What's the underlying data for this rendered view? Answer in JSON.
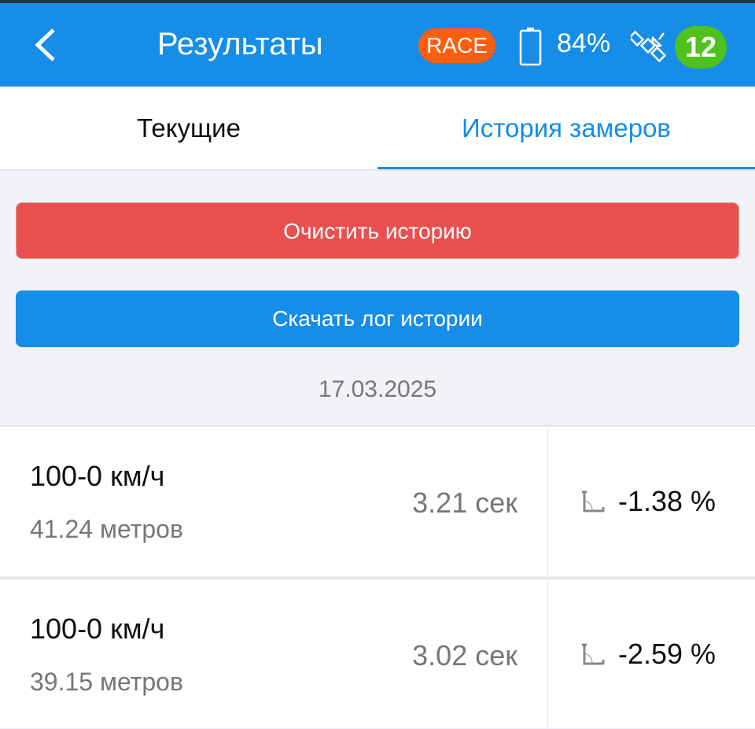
{
  "header": {
    "title": "Результаты",
    "mode_badge": "RACE",
    "battery": "84%",
    "satellites": "12",
    "colors": {
      "header": "#168de6",
      "race": "#fe5f0e",
      "sats": "#4fc21e"
    }
  },
  "tabs": [
    {
      "label": "Текущие",
      "active": false
    },
    {
      "label": "История замеров",
      "active": true
    }
  ],
  "actions": {
    "clear": "Очистить историю",
    "download": "Скачать лог истории"
  },
  "date": "17.03.2025",
  "records": [
    {
      "name": "100-0 км/ч",
      "distance": "41.24 метров",
      "time": "3.21 сек",
      "slope": "-1.38 %"
    },
    {
      "name": "100-0 км/ч",
      "distance": "39.15 метров",
      "time": "3.02 сек",
      "slope": "-2.59 %"
    }
  ]
}
